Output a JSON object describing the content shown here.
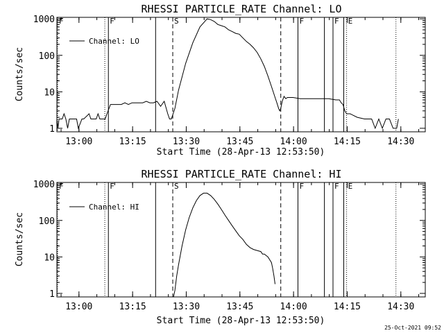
{
  "footer": {
    "timestamp": "25-Oct-2021 09:52"
  },
  "chart_data": [
    {
      "type": "line",
      "title": "RHESSI PARTICLE_RATE Channel: LO",
      "xlabel": "Start Time (28-Apr-13 12:53:50)",
      "ylabel": "Counts/sec",
      "xlim": [
        0,
        103.0
      ],
      "ylim": [
        0.8,
        1100
      ],
      "yscale": "log",
      "xtick_values": [
        6.17,
        21.17,
        36.17,
        51.17,
        66.17,
        81.17,
        96.17
      ],
      "xtick_labels": [
        "13:00",
        "13:15",
        "13:30",
        "13:45",
        "14:00",
        "14:15",
        "14:30"
      ],
      "ytick_values": [
        1,
        10,
        100,
        1000
      ],
      "ytick_labels": [
        "1",
        "10",
        "100",
        "1000"
      ],
      "legend": "Channel: LO",
      "markers": [
        {
          "x": 0.2,
          "style": "dotted",
          "label": "F"
        },
        {
          "x": 13.4,
          "style": "dotted",
          "label": ""
        },
        {
          "x": 14.4,
          "style": "solid",
          "label": "F"
        },
        {
          "x": 27.6,
          "style": "solid",
          "label": ""
        },
        {
          "x": 32.4,
          "style": "dashed",
          "label": "S"
        },
        {
          "x": 62.6,
          "style": "dashed",
          "label": ""
        },
        {
          "x": 67.4,
          "style": "solid",
          "label": "F"
        },
        {
          "x": 74.8,
          "style": "solid",
          "label": ""
        },
        {
          "x": 77.2,
          "style": "solid",
          "label": "F"
        },
        {
          "x": 80.2,
          "style": "solid",
          "label": ""
        },
        {
          "x": 81.0,
          "style": "dotted",
          "label": "E"
        },
        {
          "x": 94.8,
          "style": "dotted",
          "label": ""
        }
      ],
      "series": [
        {
          "x": [
            0,
            0.3,
            0.6,
            1.5,
            2.0,
            2.5,
            3.0,
            3.5,
            4.0,
            5.5,
            6.0,
            7.0,
            7.5,
            9.0,
            9.5,
            10.0,
            11.0,
            11.5,
            12.0,
            12.5,
            13.5,
            14.0,
            15.0,
            18.0,
            19.0,
            20.0,
            21.0,
            22.0,
            23.0,
            24.0,
            25.0,
            26.0,
            27.0,
            28.0,
            29.0,
            30.0,
            31.0,
            31.5,
            32.0,
            32.5,
            33.0,
            34.0,
            36.0,
            38.0,
            40.0,
            42.0,
            43.0,
            44.0,
            45.0,
            46.0,
            47.0,
            48.0,
            49.0,
            50.0,
            51.0,
            52.0,
            53.0,
            54.0,
            55.0,
            56.0,
            57.0,
            58.0,
            59.0,
            60.0,
            61.0,
            61.5,
            62.0,
            62.3,
            62.6,
            63.0,
            63.5,
            64.0,
            64.5,
            66.0,
            68.0,
            70.0,
            72.0,
            74.0,
            76.0,
            78.0,
            79.0,
            79.5,
            80.0,
            80.5,
            81.0,
            82.0,
            84.0,
            86.0,
            88.0,
            89.0,
            90.0,
            91.0,
            92.0,
            93.0,
            94.0,
            95.0,
            95.5
          ],
          "y": [
            1.8,
            1.0,
            1.8,
            1.8,
            2.5,
            1.8,
            1.0,
            1.8,
            1.8,
            1.8,
            1.0,
            1.8,
            1.8,
            2.5,
            1.8,
            1.8,
            1.8,
            2.5,
            1.8,
            1.8,
            1.8,
            2.5,
            4.5,
            4.5,
            5.0,
            4.5,
            5.0,
            5.0,
            5.0,
            5.0,
            5.5,
            5.0,
            5.0,
            5.5,
            4.0,
            5.5,
            2.5,
            1.8,
            1.8,
            2.5,
            3.5,
            11,
            60,
            220,
            600,
            1000,
            950,
            850,
            700,
            650,
            600,
            500,
            450,
            400,
            380,
            300,
            240,
            200,
            160,
            120,
            80,
            50,
            27,
            14,
            7,
            5,
            3.5,
            3.0,
            3.5,
            5.5,
            7.5,
            6.5,
            7.0,
            7.0,
            6.5,
            6.5,
            6.5,
            6.5,
            6.5,
            6.0,
            6.0,
            5.0,
            4.5,
            3.0,
            2.5,
            2.5,
            2.0,
            1.8,
            1.8,
            1.0,
            1.8,
            1.0,
            1.8,
            1.8,
            1.0,
            1.0,
            1.8
          ]
        }
      ]
    },
    {
      "type": "line",
      "title": "RHESSI PARTICLE_RATE Channel: HI",
      "xlabel": "Start Time (28-Apr-13 12:53:50)",
      "ylabel": "Counts/sec",
      "xlim": [
        0,
        103.0
      ],
      "ylim": [
        0.8,
        1100
      ],
      "yscale": "log",
      "xtick_values": [
        6.17,
        21.17,
        36.17,
        51.17,
        66.17,
        81.17,
        96.17
      ],
      "xtick_labels": [
        "13:00",
        "13:15",
        "13:30",
        "13:45",
        "14:00",
        "14:15",
        "14:30"
      ],
      "ytick_values": [
        1,
        10,
        100,
        1000
      ],
      "ytick_labels": [
        "1",
        "10",
        "100",
        "1000"
      ],
      "legend": "Channel: HI",
      "markers": [
        {
          "x": 0.2,
          "style": "dotted",
          "label": "F"
        },
        {
          "x": 13.4,
          "style": "dotted",
          "label": ""
        },
        {
          "x": 14.4,
          "style": "solid",
          "label": "F"
        },
        {
          "x": 27.6,
          "style": "solid",
          "label": ""
        },
        {
          "x": 32.4,
          "style": "dashed",
          "label": "S"
        },
        {
          "x": 62.6,
          "style": "dashed",
          "label": ""
        },
        {
          "x": 67.4,
          "style": "solid",
          "label": "F"
        },
        {
          "x": 74.8,
          "style": "solid",
          "label": ""
        },
        {
          "x": 77.2,
          "style": "solid",
          "label": "F"
        },
        {
          "x": 80.2,
          "style": "solid",
          "label": ""
        },
        {
          "x": 81.0,
          "style": "dotted",
          "label": "E"
        },
        {
          "x": 94.8,
          "style": "dotted",
          "label": ""
        }
      ],
      "series": [
        {
          "x": [
            32.6,
            33.0,
            33.5,
            34.0,
            35.0,
            36.0,
            37.0,
            38.0,
            39.0,
            40.0,
            41.0,
            42.0,
            43.0,
            44.0,
            45.0,
            46.0,
            47.0,
            48.0,
            49.0,
            50.0,
            51.0,
            52.0,
            53.0,
            54.0,
            55.0,
            56.0,
            57.0,
            57.5,
            58.0,
            59.0,
            60.0,
            60.3,
            60.7,
            61.0
          ],
          "y": [
            0.8,
            1.2,
            3.0,
            6.0,
            20,
            55,
            120,
            220,
            350,
            480,
            560,
            560,
            480,
            380,
            280,
            200,
            140,
            100,
            72,
            52,
            38,
            30,
            22,
            18,
            16,
            15,
            14,
            12,
            12,
            10,
            7,
            5,
            3,
            1.8
          ]
        }
      ]
    }
  ]
}
